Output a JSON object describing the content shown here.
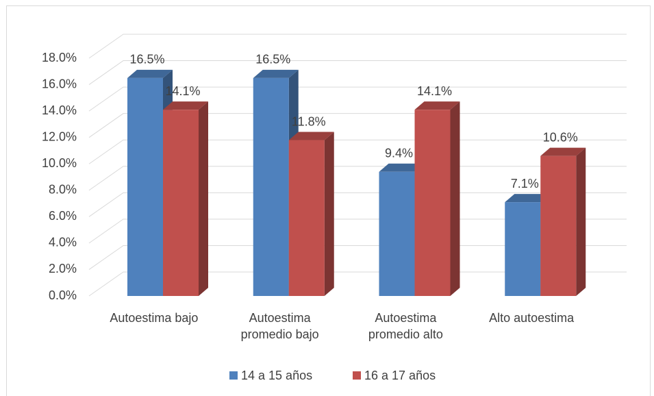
{
  "chart_data": {
    "type": "bar3d",
    "categories": [
      "Autoestima bajo",
      "Autoestima promedio bajo",
      "Autoestima promedio alto",
      "Alto autoestima"
    ],
    "series": [
      {
        "name": "14 a 15 años",
        "color": "#4f81bd",
        "values": [
          16.5,
          16.5,
          9.4,
          7.1
        ],
        "value_labels": [
          "16.5%",
          "16.5%",
          "9.4%",
          "7.1%"
        ]
      },
      {
        "name": "16 a 17 años",
        "color": "#c0504d",
        "values": [
          14.1,
          11.8,
          14.1,
          10.6
        ],
        "value_labels": [
          "14.1%",
          "11.8%",
          "14.1%",
          "10.6%"
        ]
      }
    ],
    "ylim": [
      0,
      18
    ],
    "yticks": [
      {
        "value": 0,
        "label": "0.0%"
      },
      {
        "value": 2,
        "label": "2.0%"
      },
      {
        "value": 4,
        "label": "4.0%"
      },
      {
        "value": 6,
        "label": "6.0%"
      },
      {
        "value": 8,
        "label": "8.0%"
      },
      {
        "value": 10,
        "label": "10.0%"
      },
      {
        "value": 12,
        "label": "12.0%"
      },
      {
        "value": 14,
        "label": "14.0%"
      },
      {
        "value": 16,
        "label": "16.0%"
      },
      {
        "value": 18,
        "label": "18.0%"
      }
    ],
    "grid": true,
    "legend": "bottom"
  }
}
